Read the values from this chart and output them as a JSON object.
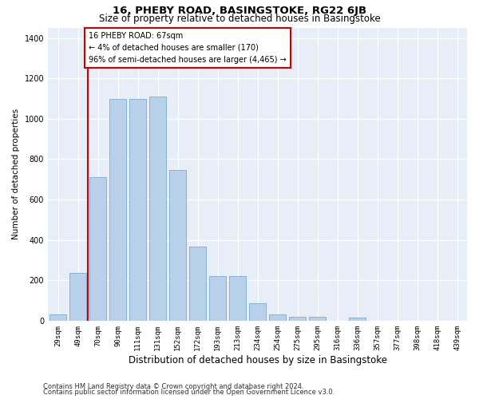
{
  "title": "16, PHEBY ROAD, BASINGSTOKE, RG22 6JB",
  "subtitle": "Size of property relative to detached houses in Basingstoke",
  "xlabel": "Distribution of detached houses by size in Basingstoke",
  "ylabel": "Number of detached properties",
  "categories": [
    "29sqm",
    "49sqm",
    "70sqm",
    "90sqm",
    "111sqm",
    "131sqm",
    "152sqm",
    "172sqm",
    "193sqm",
    "213sqm",
    "234sqm",
    "254sqm",
    "275sqm",
    "295sqm",
    "316sqm",
    "336sqm",
    "357sqm",
    "377sqm",
    "398sqm",
    "418sqm",
    "439sqm"
  ],
  "values": [
    30,
    235,
    710,
    1100,
    1100,
    1110,
    745,
    365,
    220,
    220,
    85,
    30,
    20,
    18,
    0,
    15,
    0,
    0,
    0,
    0,
    0
  ],
  "bar_color": "#b8d0ea",
  "bar_edge_color": "#7aabd4",
  "vline_color": "#cc0000",
  "annotation_text": "16 PHEBY ROAD: 67sqm\n← 4% of detached houses are smaller (170)\n96% of semi-detached houses are larger (4,465) →",
  "annotation_box_facecolor": "#ffffff",
  "annotation_box_edgecolor": "#cc0000",
  "ylim": [
    0,
    1450
  ],
  "yticks": [
    0,
    200,
    400,
    600,
    800,
    1000,
    1200,
    1400
  ],
  "background_color": "#e8eef8",
  "title_fontsize": 9.5,
  "subtitle_fontsize": 8.5,
  "ylabel_fontsize": 7.5,
  "xlabel_fontsize": 8.5,
  "tick_fontsize": 6.5,
  "annotation_fontsize": 7.0,
  "footer_fontsize": 6.0,
  "footer_line1": "Contains HM Land Registry data © Crown copyright and database right 2024.",
  "footer_line2": "Contains public sector information licensed under the Open Government Licence v3.0."
}
